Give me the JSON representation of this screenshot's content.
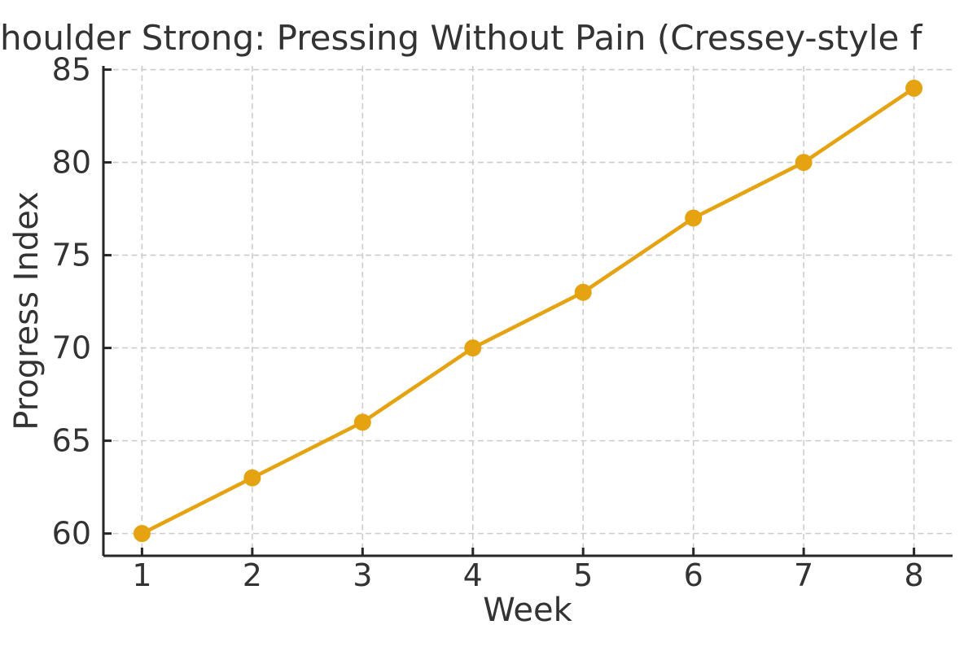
{
  "chart_data": {
    "type": "line",
    "title": "houlder Strong: Pressing Without Pain (Cressey-style f",
    "title_truncated_at_edges": true,
    "xlabel": "Week",
    "ylabel": "Progress Index",
    "x": [
      1,
      2,
      3,
      4,
      5,
      6,
      7,
      8
    ],
    "series": [
      {
        "name": "progress-index",
        "values": [
          60,
          63,
          66,
          70,
          73,
          77,
          80,
          84
        ],
        "color": "#E5A312",
        "marker": "circle",
        "marker_radius": 10.5,
        "line_width": 4.6
      }
    ],
    "x_ticks": [
      1,
      2,
      3,
      4,
      5,
      6,
      7,
      8
    ],
    "y_ticks": [
      60,
      65,
      70,
      75,
      80,
      85
    ],
    "xlim": [
      0.65,
      8.35
    ],
    "ylim": [
      58.8,
      85.2
    ],
    "grid": "dashed",
    "grid_color": "#cccccc",
    "axis_color": "#262626",
    "text_color": "#333333",
    "tick_direction": "in",
    "legend_position": "none",
    "background": "#ffffff"
  }
}
